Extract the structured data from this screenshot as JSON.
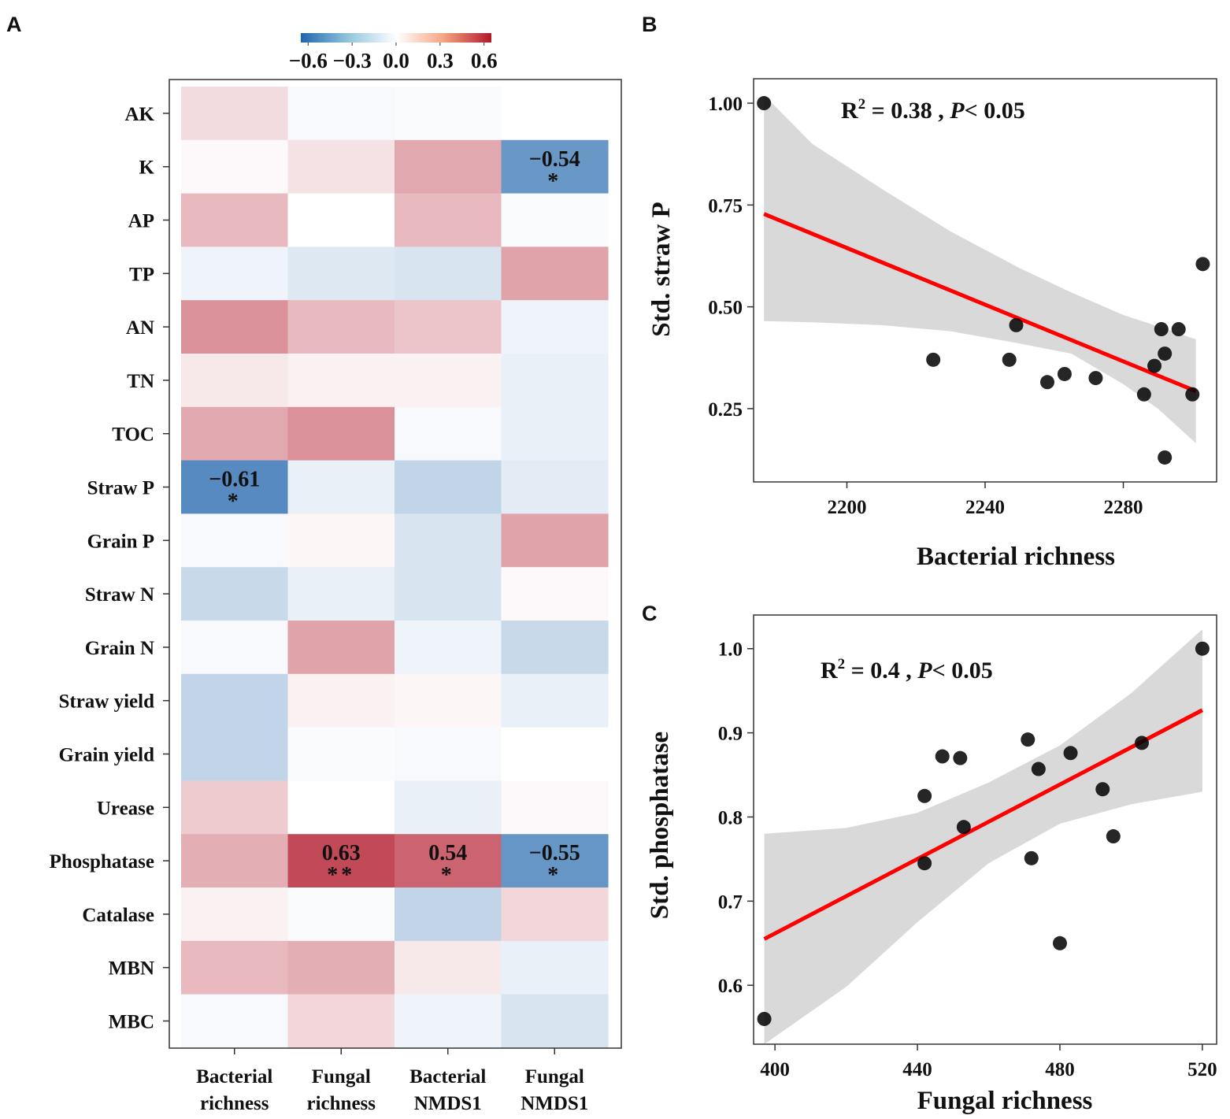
{
  "colors": {
    "neg": "#2166ac",
    "mid": "#ffffff",
    "pos": "#b2182b",
    "fit_line": "#ff0000",
    "ci_band": "#d9d9d9",
    "points": "#000000"
  },
  "chart_data": [
    {
      "type": "heatmap",
      "panel": "A",
      "rows": [
        "AK",
        "K",
        "AP",
        "TP",
        "AN",
        "TN",
        "TOC",
        "Straw P",
        "Grain P",
        "Straw N",
        "Grain N",
        "Straw yield",
        "Grain yield",
        "Urease",
        "Phosphatase",
        "Catalase",
        "MBN",
        "MBC"
      ],
      "columns": [
        {
          "line1": "Bacterial",
          "line2": "richness"
        },
        {
          "line1": "Fungal",
          "line2": "richness"
        },
        {
          "line1": "Bacterial",
          "line2": "NMDS1"
        },
        {
          "line1": "Fungal",
          "line2": "NMDS1"
        }
      ],
      "values": [
        [
          0.12,
          -0.03,
          -0.02,
          0.0
        ],
        [
          0.02,
          0.1,
          0.3,
          -0.54
        ],
        [
          0.24,
          0.0,
          0.24,
          -0.02
        ],
        [
          -0.06,
          -0.12,
          -0.14,
          0.32
        ],
        [
          0.38,
          0.24,
          0.2,
          -0.06
        ],
        [
          0.08,
          0.05,
          0.05,
          -0.08
        ],
        [
          0.3,
          0.38,
          -0.03,
          -0.08
        ],
        [
          -0.61,
          -0.08,
          -0.22,
          -0.1
        ],
        [
          -0.03,
          0.03,
          -0.14,
          0.32
        ],
        [
          -0.2,
          -0.08,
          -0.14,
          0.02
        ],
        [
          -0.03,
          0.32,
          -0.06,
          -0.2
        ],
        [
          -0.22,
          0.05,
          0.03,
          -0.08
        ],
        [
          -0.22,
          -0.02,
          -0.03,
          0.0
        ],
        [
          0.18,
          0.0,
          -0.08,
          0.02
        ],
        [
          0.28,
          0.63,
          0.54,
          -0.55
        ],
        [
          0.05,
          -0.02,
          -0.22,
          0.14
        ],
        [
          0.24,
          0.28,
          0.08,
          -0.08
        ],
        [
          -0.03,
          0.14,
          -0.06,
          -0.14
        ]
      ],
      "annotations": [
        {
          "row": 1,
          "col": 3,
          "value": "−0.54",
          "sig": "*"
        },
        {
          "row": 7,
          "col": 0,
          "value": "−0.61",
          "sig": "*"
        },
        {
          "row": 14,
          "col": 1,
          "value": "0.63",
          "sig": "**"
        },
        {
          "row": 14,
          "col": 2,
          "value": "0.54",
          "sig": "*"
        },
        {
          "row": 14,
          "col": 3,
          "value": "−0.55",
          "sig": "*"
        }
      ],
      "legend": {
        "range": [
          -0.65,
          0.65
        ],
        "ticks": [
          "−0.6",
          "−0.3",
          "0.0",
          "0.3",
          "0.6"
        ],
        "tick_values": [
          -0.6,
          -0.3,
          0.0,
          0.3,
          0.6
        ]
      }
    },
    {
      "type": "scatter",
      "panel": "B",
      "xlabel": "Bacterial richness",
      "ylabel": "Std. straw P",
      "xlim": [
        2173,
        2307
      ],
      "ylim": [
        0.07,
        1.06
      ],
      "xticks": [
        2200,
        2240,
        2280
      ],
      "yticks": [
        0.25,
        0.5,
        0.75,
        1.0
      ],
      "ytick_labels": [
        "0.25",
        "0.50",
        "0.75",
        "1.00"
      ],
      "annotation": {
        "r2_text": "R",
        "r2_sup": "2",
        "r2_value": " = 0.38 , ",
        "p_letter": "P",
        "p_rest": "< 0.05"
      },
      "points": [
        {
          "x": 2176,
          "y": 1.0
        },
        {
          "x": 2225,
          "y": 0.37
        },
        {
          "x": 2247,
          "y": 0.37
        },
        {
          "x": 2249,
          "y": 0.455
        },
        {
          "x": 2258,
          "y": 0.315
        },
        {
          "x": 2263,
          "y": 0.335
        },
        {
          "x": 2272,
          "y": 0.325
        },
        {
          "x": 2286,
          "y": 0.285
        },
        {
          "x": 2289,
          "y": 0.355
        },
        {
          "x": 2291,
          "y": 0.445
        },
        {
          "x": 2292,
          "y": 0.385
        },
        {
          "x": 2292,
          "y": 0.13
        },
        {
          "x": 2296,
          "y": 0.445
        },
        {
          "x": 2300,
          "y": 0.285
        },
        {
          "x": 2303,
          "y": 0.605
        }
      ],
      "fit": {
        "x0": 2176,
        "y0": 0.728,
        "x1": 2301,
        "y1": 0.293
      },
      "ci_upper": [
        [
          2176,
          1.02
        ],
        [
          2190,
          0.9
        ],
        [
          2210,
          0.79
        ],
        [
          2230,
          0.685
        ],
        [
          2250,
          0.595
        ],
        [
          2265,
          0.535
        ],
        [
          2280,
          0.48
        ],
        [
          2290,
          0.452
        ],
        [
          2301,
          0.42
        ]
      ],
      "ci_lower": [
        [
          2176,
          0.465
        ],
        [
          2190,
          0.462
        ],
        [
          2210,
          0.455
        ],
        [
          2230,
          0.44
        ],
        [
          2250,
          0.41
        ],
        [
          2265,
          0.385
        ],
        [
          2280,
          0.31
        ],
        [
          2290,
          0.25
        ],
        [
          2301,
          0.165
        ]
      ]
    },
    {
      "type": "scatter",
      "panel": "C",
      "xlabel": "Fungal richness",
      "ylabel": "Std. phosphatase",
      "xlim": [
        394,
        524
      ],
      "ylim": [
        0.53,
        1.04
      ],
      "xticks": [
        400,
        440,
        480,
        520
      ],
      "yticks": [
        0.6,
        0.7,
        0.8,
        0.9,
        1.0
      ],
      "ytick_labels": [
        "0.6",
        "0.7",
        "0.8",
        "0.9",
        "1.0"
      ],
      "annotation": {
        "r2_text": "R",
        "r2_sup": "2",
        "r2_value": " = 0.4 , ",
        "p_letter": "P",
        "p_rest": "< 0.05"
      },
      "points": [
        {
          "x": 397,
          "y": 0.56
        },
        {
          "x": 442,
          "y": 0.825
        },
        {
          "x": 442,
          "y": 0.745
        },
        {
          "x": 447,
          "y": 0.872
        },
        {
          "x": 452,
          "y": 0.87
        },
        {
          "x": 453,
          "y": 0.788
        },
        {
          "x": 471,
          "y": 0.892
        },
        {
          "x": 472,
          "y": 0.751
        },
        {
          "x": 474,
          "y": 0.857
        },
        {
          "x": 480,
          "y": 0.65
        },
        {
          "x": 483,
          "y": 0.876
        },
        {
          "x": 492,
          "y": 0.833
        },
        {
          "x": 495,
          "y": 0.777
        },
        {
          "x": 503,
          "y": 0.888
        },
        {
          "x": 520,
          "y": 1.0
        }
      ],
      "fit": {
        "x0": 397,
        "y0": 0.655,
        "x1": 520,
        "y1": 0.927
      },
      "ci_upper": [
        [
          397,
          0.78
        ],
        [
          420,
          0.787
        ],
        [
          440,
          0.805
        ],
        [
          460,
          0.841
        ],
        [
          480,
          0.885
        ],
        [
          500,
          0.947
        ],
        [
          520,
          1.023
        ]
      ],
      "ci_lower": [
        [
          397,
          0.53
        ],
        [
          420,
          0.598
        ],
        [
          440,
          0.675
        ],
        [
          460,
          0.745
        ],
        [
          480,
          0.792
        ],
        [
          500,
          0.815
        ],
        [
          520,
          0.83
        ]
      ]
    }
  ]
}
